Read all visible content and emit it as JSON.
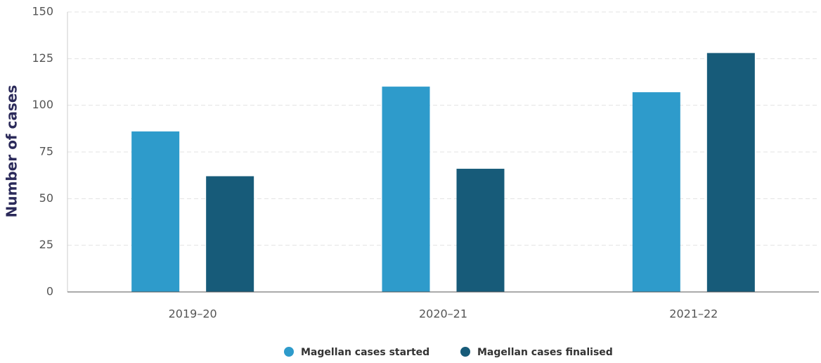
{
  "chart_data": {
    "type": "bar",
    "y_label": "Number of cases",
    "categories": [
      "2019–20",
      "2020–21",
      "2021–22"
    ],
    "series": [
      {
        "name": "Magellan cases started",
        "color": "#2e9bcb",
        "values": [
          86,
          110,
          107
        ]
      },
      {
        "name": "Magellan cases finalised",
        "color": "#175b79",
        "values": [
          62,
          66,
          128
        ]
      }
    ],
    "ylim": [
      0,
      150
    ],
    "yticks": [
      0,
      25,
      50,
      75,
      100,
      125,
      150
    ],
    "grid": true,
    "legend": "bottom"
  }
}
